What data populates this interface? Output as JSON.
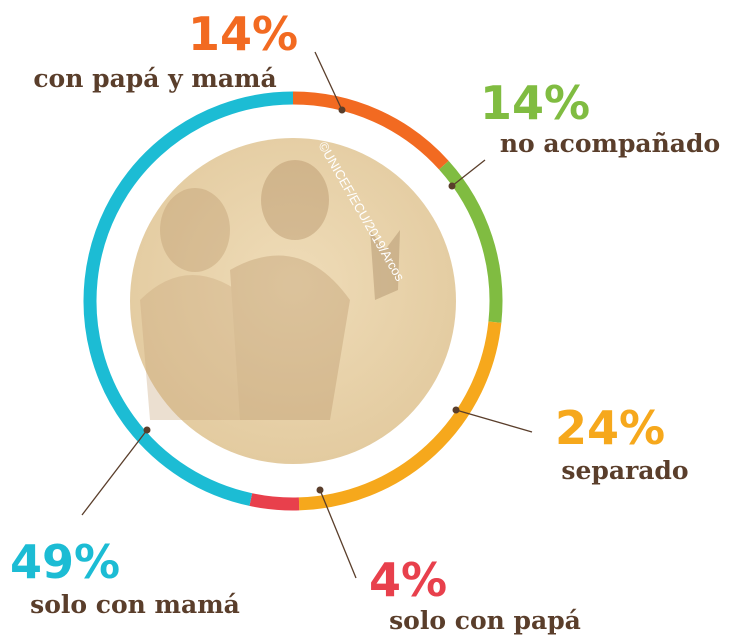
{
  "chart_data": {
    "type": "donut",
    "credit": "©UNICEF/ECU/2019/Arcos",
    "categories": [
      "con papá y mamá",
      "no acompañado",
      "separado",
      "solo con papá",
      "solo con mamá"
    ],
    "values": [
      14,
      14,
      24,
      4,
      49
    ],
    "value_labels": [
      "14%",
      "14%",
      "24%",
      "4%",
      "49%"
    ],
    "colors": [
      "#f26a21",
      "#80bc41",
      "#f6a81c",
      "#e8404c",
      "#1cbcd4"
    ]
  }
}
